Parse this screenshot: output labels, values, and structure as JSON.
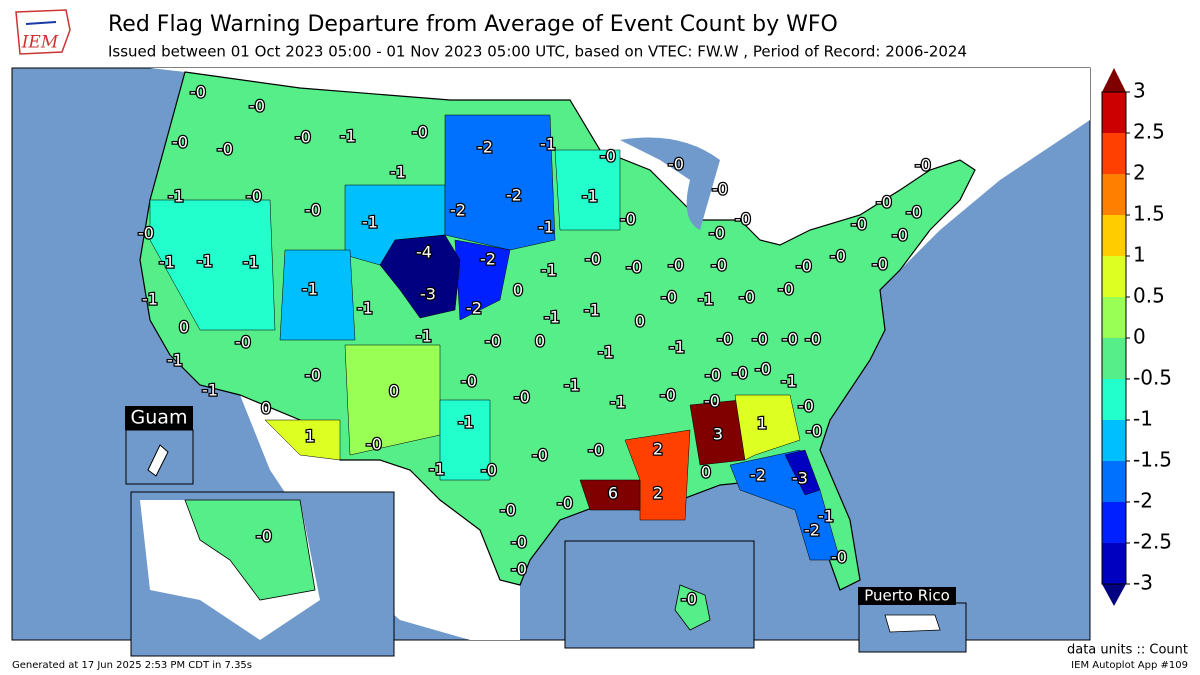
{
  "header": {
    "logo": "IEM",
    "title": "Red Flag Warning Departure from Average of Event Count by WFO",
    "subtitle": "Issued between 01 Oct 2023 05:00 - 01 Nov 2023 05:00 UTC, based on VTEC: FW.W  , Period of Record: 2006-2024"
  },
  "map": {
    "insets": {
      "guam": "Guam",
      "puerto_rico": "Puerto Rico"
    },
    "labels": [
      "-0",
      "-0",
      "-0",
      "-1",
      "-0",
      "-2",
      "-1",
      "-0",
      "-0",
      "-0",
      "-0",
      "-1",
      "-1",
      "-0",
      "-0",
      "-1",
      "-2",
      "-2",
      "-1",
      "-1",
      "-0",
      "-0",
      "-0",
      "-1",
      "-1",
      "-1",
      "-4",
      "-2",
      "-1",
      "-0",
      "-0",
      "-0",
      "-0",
      "-0",
      "-0",
      "-1",
      "-3",
      "0",
      "-1",
      "-1",
      "-2",
      "-1",
      "-1",
      "-0",
      "-1",
      "-0",
      "-0",
      "0",
      "-1",
      "-0",
      "0",
      "-1",
      "0",
      "-1",
      "-0",
      "-0",
      "-0",
      "-0",
      "-0",
      "-1",
      "-0",
      "-0",
      "-0",
      "-1",
      "-0",
      "-0",
      "-0",
      "-0",
      "-1",
      "-1",
      "0",
      "-1",
      "-0",
      "-0",
      "0",
      "-1",
      "2",
      "3",
      "1",
      "-0",
      "1",
      "-0",
      "-1",
      "-0",
      "-0",
      "-0",
      "0",
      "-2",
      "-3",
      "-0",
      "6",
      "2",
      "-0",
      "-1",
      "-2",
      "-0",
      "-0",
      "-0",
      "-0",
      "-0",
      "-0",
      "-0",
      "-0",
      "-0",
      "-0",
      "-0",
      "-0",
      "-0"
    ]
  },
  "colorbar": {
    "ticks": [
      3,
      2.5,
      2,
      1.5,
      1,
      0.5,
      0,
      -0.5,
      -1,
      -1.5,
      -2,
      -2.5,
      -3
    ],
    "colors": [
      "#cc0000",
      "#ff4000",
      "#ff8000",
      "#ffcc00",
      "#ddff22",
      "#99ff55",
      "#55ee88",
      "#22ffcc",
      "#00bfff",
      "#0070ff",
      "#0020ff",
      "#0000c0"
    ],
    "over_color": "#800000",
    "under_color": "#000080"
  },
  "footer": {
    "generated": "Generated at 17 Jun 2025 2:53 PM CDT in 7.35s",
    "units": "data units :: Count",
    "app": "IEM Autoplot App #109"
  }
}
